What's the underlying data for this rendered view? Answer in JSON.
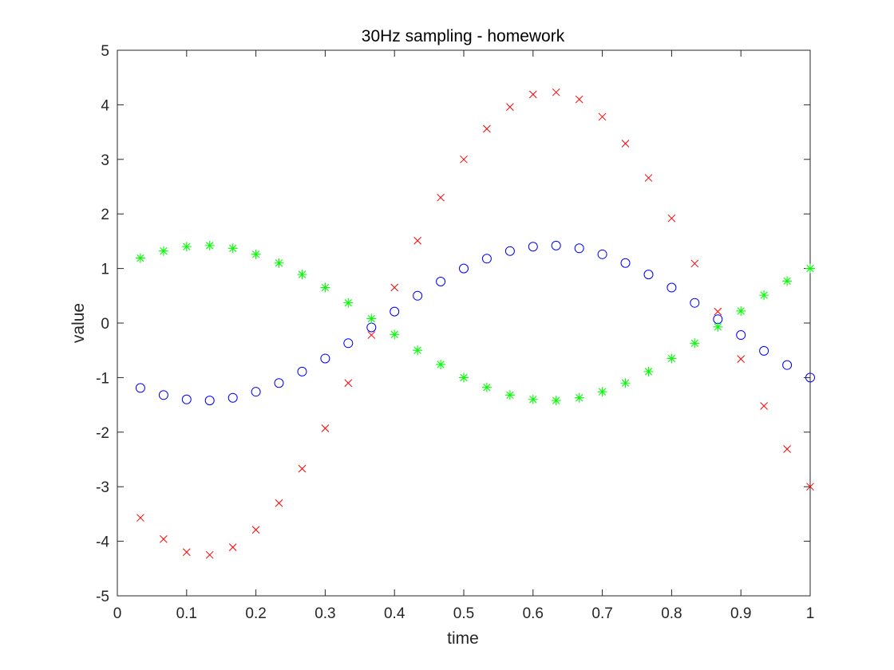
{
  "chart_data": {
    "type": "scatter",
    "title": "30Hz sampling - homework",
    "xlabel": "time",
    "ylabel": "value",
    "xlim": [
      0,
      1
    ],
    "ylim": [
      -5,
      5
    ],
    "xticks": [
      "0",
      "0.1",
      "0.2",
      "0.3",
      "0.4",
      "0.5",
      "0.6",
      "0.7",
      "0.8",
      "0.9",
      "1"
    ],
    "yticks": [
      "-5",
      "-4",
      "-3",
      "-2",
      "-1",
      "0",
      "1",
      "2",
      "3",
      "4",
      "5"
    ],
    "grid": false,
    "legend": "none",
    "x": [
      0.0333,
      0.0667,
      0.1,
      0.1333,
      0.1667,
      0.2,
      0.2333,
      0.2667,
      0.3,
      0.3333,
      0.3667,
      0.4,
      0.4333,
      0.4667,
      0.5,
      0.5333,
      0.5667,
      0.6,
      0.6333,
      0.6667,
      0.7,
      0.7333,
      0.7667,
      0.8,
      0.8333,
      0.8667,
      0.9,
      0.9333,
      0.9667,
      1.0
    ],
    "series": [
      {
        "marker": "circle",
        "color": "#0000ff",
        "values": [
          -1.19,
          -1.32,
          -1.4,
          -1.42,
          -1.37,
          -1.26,
          -1.1,
          -0.89,
          -0.65,
          -0.37,
          -0.08,
          0.21,
          0.5,
          0.76,
          1.0,
          1.18,
          1.32,
          1.4,
          1.42,
          1.37,
          1.26,
          1.1,
          0.89,
          0.65,
          0.37,
          0.07,
          -0.22,
          -0.51,
          -0.77,
          -1.0
        ]
      },
      {
        "marker": "cross",
        "color": "#ff0000",
        "values": [
          -3.57,
          -3.96,
          -4.2,
          -4.25,
          -4.11,
          -3.79,
          -3.3,
          -2.67,
          -1.93,
          -1.1,
          -0.22,
          0.65,
          1.51,
          2.3,
          3.0,
          3.56,
          3.96,
          4.19,
          4.23,
          4.1,
          3.78,
          3.29,
          2.66,
          1.92,
          1.09,
          0.21,
          -0.66,
          -1.52,
          -2.31,
          -3.0
        ]
      },
      {
        "marker": "asterisk",
        "color": "#00ff00",
        "values": [
          1.19,
          1.32,
          1.4,
          1.42,
          1.37,
          1.26,
          1.1,
          0.89,
          0.65,
          0.37,
          0.08,
          -0.21,
          -0.5,
          -0.76,
          -1.0,
          -1.18,
          -1.32,
          -1.4,
          -1.42,
          -1.37,
          -1.26,
          -1.1,
          -0.89,
          -0.65,
          -0.37,
          -0.07,
          0.22,
          0.51,
          0.77,
          1.0
        ]
      }
    ]
  }
}
